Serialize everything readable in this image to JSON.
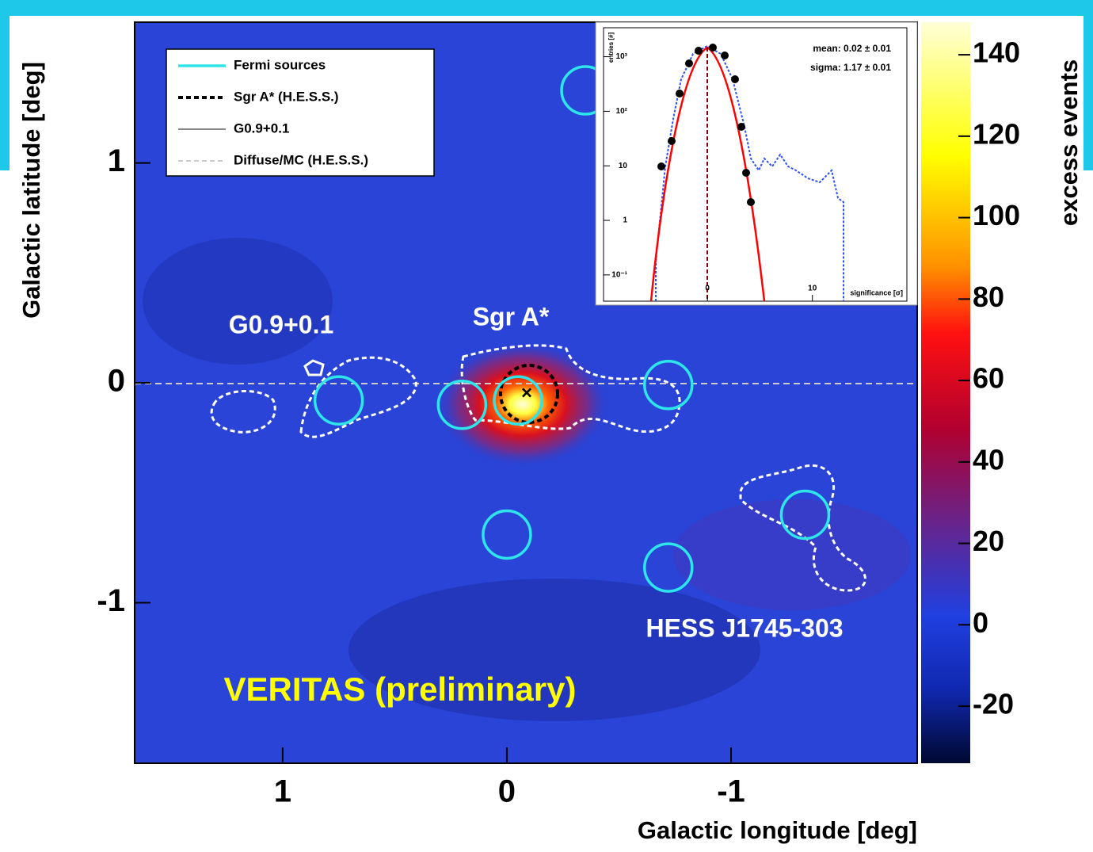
{
  "chart_data": [
    {
      "type": "skymap",
      "xlabel": "Galactic longitude [deg]",
      "ylabel": "Galactic latitude [deg]",
      "xlim": [
        1.66,
        -1.83
      ],
      "ylim": [
        -1.73,
        1.64
      ],
      "xticks": [
        1,
        0,
        -1
      ],
      "yticks": [
        1,
        0,
        -1
      ],
      "colorbar": {
        "label": "excess events",
        "lim": [
          -34,
          148
        ],
        "ticks": [
          140,
          120,
          100,
          80,
          60,
          40,
          20,
          0,
          -20
        ]
      },
      "annotations": [
        "G0.9+0.1",
        "Sgr A*",
        "HESS J1745-303",
        "VERITAS (preliminary)"
      ],
      "fermi_sources": {
        "name": "Fermi sources",
        "color": "#2ee6ea",
        "x": [
          0.75,
          0.2,
          -0.05,
          -0.72,
          -1.33,
          0.0,
          -0.72,
          -0.35
        ],
        "y": [
          -0.08,
          -0.1,
          -0.08,
          -0.01,
          -0.6,
          -0.69,
          -0.84,
          1.33
        ]
      },
      "contours": [
        {
          "name": "Sgr A* (H.E.S.S.)",
          "color": "#000000",
          "dash": "6 4",
          "width": 4
        },
        {
          "name": "G0.9+0.1",
          "color": "#888888",
          "dash": "",
          "width": 2
        },
        {
          "name": "Diffuse/MC (H.E.S.S.)",
          "color": "#cccccc",
          "dash": "6 4",
          "width": 2
        }
      ]
    },
    {
      "type": "inset-histogram",
      "log_y": true,
      "xlabel": "significance [σ]",
      "ylabel": "entries [#]",
      "xlim": [
        -9.9,
        19
      ],
      "xticks": [
        0,
        10
      ],
      "ylim": [
        0.033,
        3400
      ],
      "yticks": [
        {
          "value": 0.1,
          "label": "10⁻¹"
        },
        {
          "value": 1,
          "label": "1"
        },
        {
          "value": 10,
          "label": "10"
        },
        {
          "value": 100,
          "label": "10²"
        },
        {
          "value": 1000,
          "label": "10³"
        }
      ],
      "stats": [
        "mean: 0.02 ± 0.01",
        "sigma: 1.17 ± 0.01"
      ]
    }
  ]
}
